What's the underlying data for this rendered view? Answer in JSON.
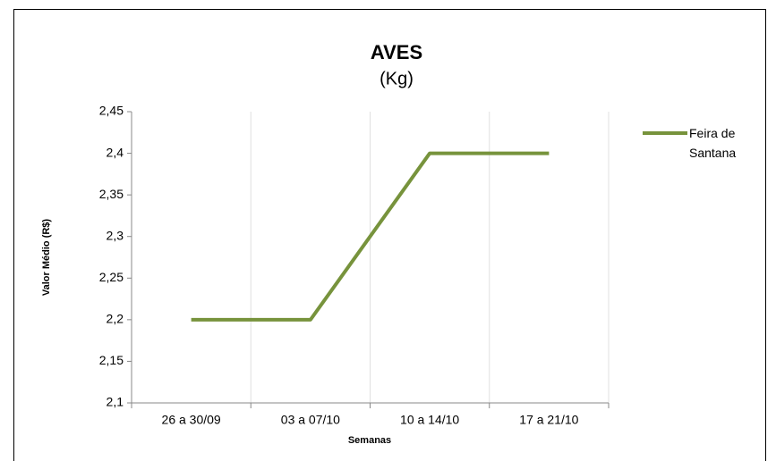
{
  "chart_data": {
    "type": "line",
    "title": "AVES",
    "subtitle": "(Kg)",
    "x_label": "Semanas",
    "y_label": "Valor Médio (R$)",
    "categories": [
      "26 a 30/09",
      "03 a 07/10",
      "10 a 14/10",
      "17 a 21/10"
    ],
    "series": [
      {
        "name": "Feira de Santana",
        "color": "#77933c",
        "values": [
          2.2,
          2.2,
          2.4,
          2.4
        ]
      }
    ],
    "ylim": [
      2.1,
      2.45
    ],
    "yticks": [
      {
        "value": 2.1,
        "label": "2,1"
      },
      {
        "value": 2.15,
        "label": "2,15"
      },
      {
        "value": 2.2,
        "label": "2,2"
      },
      {
        "value": 2.25,
        "label": "2,25"
      },
      {
        "value": 2.3,
        "label": "2,3"
      },
      {
        "value": 2.35,
        "label": "2,35"
      },
      {
        "value": 2.4,
        "label": "2,4"
      },
      {
        "value": 2.45,
        "label": "2,45"
      }
    ],
    "grid": true,
    "legend": "right"
  }
}
